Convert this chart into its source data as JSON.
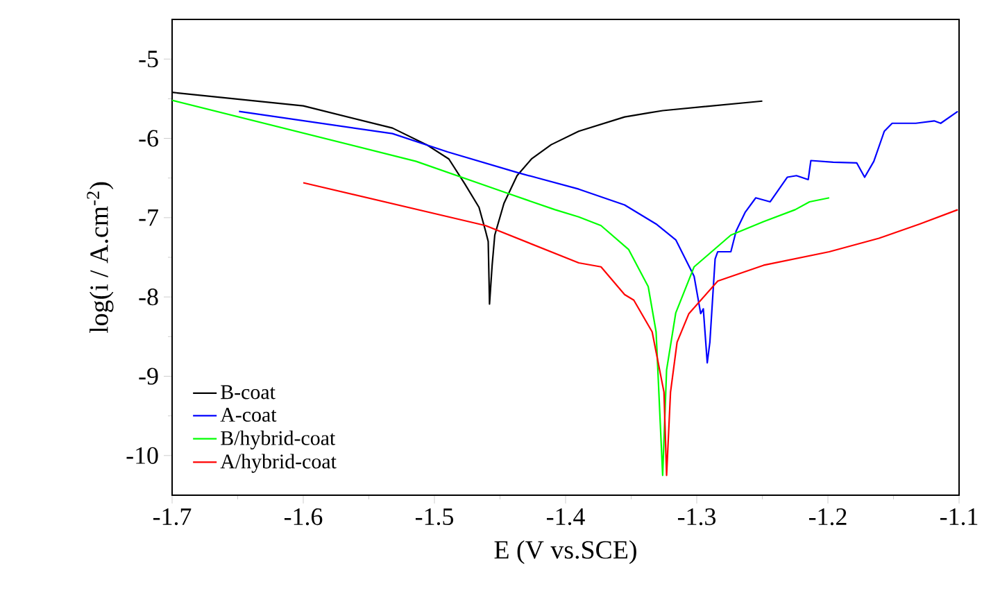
{
  "chart_data": {
    "type": "line",
    "xlabel": "E (V vs.SCE)",
    "ylabel": "log(i / A.cm$^{-2}$)",
    "xlim": [
      -1.7,
      -1.1
    ],
    "ylim": [
      -10.5,
      -4.5
    ],
    "xticks": [
      -1.7,
      -1.6,
      -1.5,
      -1.4,
      -1.3,
      -1.2,
      -1.1
    ],
    "yticks": [
      -10,
      -9,
      -8,
      -7,
      -6,
      -5
    ],
    "legend": "bottom left",
    "grid": false,
    "marker": "none",
    "line_style": "solid",
    "series": [
      {
        "name": "B-coat",
        "color": "#000000",
        "x": [
          -1.7,
          -1.6,
          -1.532,
          -1.506,
          -1.489,
          -1.477,
          -1.466,
          -1.461,
          -1.459,
          -1.458,
          -1.456,
          -1.454,
          -1.447,
          -1.437,
          -1.426,
          -1.411,
          -1.39,
          -1.355,
          -1.337,
          -1.326,
          -1.25
        ],
        "values": [
          -5.42,
          -5.59,
          -5.87,
          -6.08,
          -6.26,
          -6.57,
          -6.87,
          -7.17,
          -7.3,
          -8.09,
          -7.6,
          -7.22,
          -6.82,
          -6.47,
          -6.26,
          -6.08,
          -5.91,
          -5.73,
          -5.68,
          -5.65,
          -5.53
        ]
      },
      {
        "name": "A-coat",
        "color": "#0000ff",
        "x": [
          -1.649,
          -1.532,
          -1.49,
          -1.437,
          -1.39,
          -1.355,
          -1.331,
          -1.316,
          -1.302,
          -1.297,
          -1.295,
          -1.292,
          -1.29,
          -1.286,
          -1.284,
          -1.274,
          -1.27,
          -1.263,
          -1.255,
          -1.244,
          -1.231,
          -1.224,
          -1.215,
          -1.213,
          -1.196,
          -1.178,
          -1.172,
          -1.165,
          -1.157,
          -1.151,
          -1.133,
          -1.119,
          -1.114,
          -1.101
        ],
        "values": [
          -5.66,
          -5.94,
          -6.17,
          -6.43,
          -6.64,
          -6.84,
          -7.08,
          -7.28,
          -7.74,
          -8.21,
          -8.15,
          -8.83,
          -8.57,
          -7.52,
          -7.43,
          -7.43,
          -7.17,
          -6.93,
          -6.75,
          -6.8,
          -6.49,
          -6.47,
          -6.52,
          -6.28,
          -6.3,
          -6.31,
          -6.49,
          -6.29,
          -5.91,
          -5.81,
          -5.81,
          -5.78,
          -5.81,
          -5.66
        ]
      },
      {
        "name": "B/hybrid-coat",
        "color": "#00ff00",
        "x": [
          -1.7,
          -1.514,
          -1.443,
          -1.408,
          -1.39,
          -1.373,
          -1.352,
          -1.337,
          -1.331,
          -1.326,
          -1.323,
          -1.316,
          -1.302,
          -1.274,
          -1.249,
          -1.225,
          -1.214,
          -1.199
        ],
        "values": [
          -5.52,
          -6.29,
          -6.7,
          -6.9,
          -6.99,
          -7.1,
          -7.4,
          -7.87,
          -8.44,
          -10.25,
          -8.92,
          -8.2,
          -7.62,
          -7.22,
          -7.05,
          -6.9,
          -6.8,
          -6.75
        ]
      },
      {
        "name": "A/hybrid-coat",
        "color": "#ff0000",
        "x": [
          -1.6,
          -1.461,
          -1.39,
          -1.373,
          -1.355,
          -1.348,
          -1.334,
          -1.325,
          -1.323,
          -1.32,
          -1.315,
          -1.306,
          -1.284,
          -1.249,
          -1.199,
          -1.161,
          -1.13,
          -1.101
        ],
        "values": [
          -6.56,
          -7.1,
          -7.57,
          -7.62,
          -7.97,
          -8.04,
          -8.44,
          -9.2,
          -10.25,
          -9.2,
          -8.57,
          -8.21,
          -7.8,
          -7.6,
          -7.43,
          -7.26,
          -7.08,
          -6.9
        ]
      }
    ]
  }
}
